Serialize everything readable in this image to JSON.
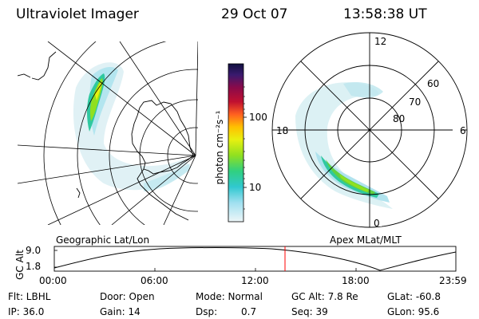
{
  "header": {
    "instrument": "Ultraviolet Imager",
    "date": "29 Oct 07",
    "time": "13:58:38 UT"
  },
  "geo_panel": {
    "label": "Geographic Lat/Lon"
  },
  "apex_panel": {
    "label": "Apex MLat/MLT",
    "mlt_labels": {
      "top": "12",
      "right": "6",
      "bottom": "0",
      "left": "18"
    },
    "lat_labels": [
      "60",
      "70",
      "80"
    ]
  },
  "colorbar": {
    "unit_label": "photon cm⁻²s⁻¹",
    "ticks": [
      "100",
      "10"
    ],
    "colors": [
      "#101040",
      "#3a1a6e",
      "#8a0a4a",
      "#c01030",
      "#ff6020",
      "#ffc000",
      "#e8f010",
      "#90e020",
      "#30d080",
      "#30c8d0",
      "#a0e0f0",
      "#e6f4f8"
    ]
  },
  "altitude_plot": {
    "ylabel": "GC Alt",
    "ytick_top": "9.0",
    "ytick_bottom": "1.8",
    "xticks": [
      "00:00",
      "06:00",
      "12:00",
      "18:00",
      "23:59"
    ],
    "current_time_marker_color": "#ff0000"
  },
  "info": {
    "row1": {
      "flt": "Flt: LBHL",
      "door": "Door: Open",
      "mode": "Mode: Normal",
      "gcalt": "GC Alt: 7.8 Re",
      "glat": "GLat: -60.8"
    },
    "row2": {
      "ip": "IP: 36.0",
      "gain": "Gain: 14",
      "dsp_label": "Dsp:",
      "dsp_value": "0.7",
      "seq": "Seq: 39",
      "glon": "GLon: 95.6"
    }
  }
}
